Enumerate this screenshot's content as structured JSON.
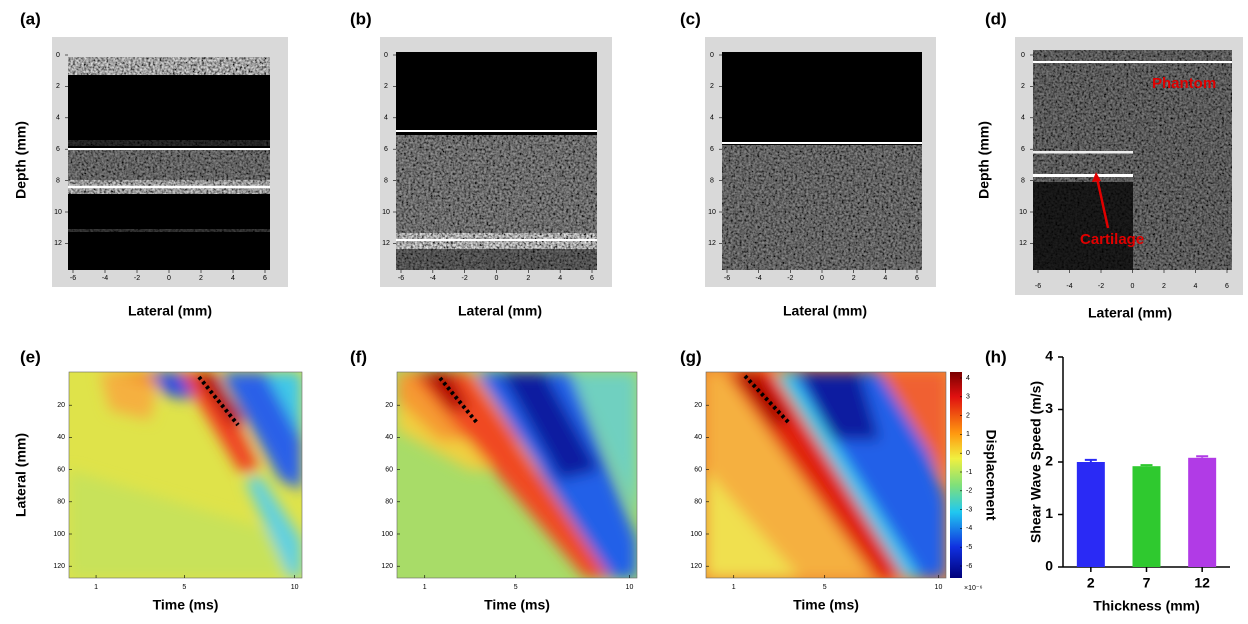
{
  "panels": {
    "labels": [
      "(a)",
      "(b)",
      "(c)",
      "(d)",
      "(e)",
      "(f)",
      "(g)",
      "(h)"
    ]
  },
  "ultrasound": {
    "y_label": "Depth (mm)",
    "x_label": "Lateral (mm)",
    "yticks": [
      0,
      2,
      4,
      6,
      8,
      10,
      12
    ],
    "xticks": [
      -6,
      -4,
      -2,
      0,
      2,
      4,
      6
    ],
    "annotations": [
      "Phantom",
      "Cartilage"
    ]
  },
  "displacement": {
    "y_label": "Lateral (mm)",
    "x_label": "Time  (ms)",
    "yticks": [
      20,
      40,
      60,
      80,
      100,
      120
    ],
    "xticks": [
      1,
      5,
      10
    ],
    "colorbar_label": "Displacement",
    "colorbar_ticks": [
      4,
      3,
      2,
      1,
      0,
      -1,
      -2,
      -3,
      -4,
      -5,
      -6
    ],
    "colorbar_scale": "×10⁻⁶"
  },
  "chart_data": {
    "type": "bar",
    "y_label": "Shear Wave Speed (m/s)",
    "x_label": "Thickness (mm)",
    "categories": [
      "2",
      "7",
      "12"
    ],
    "values": [
      2.0,
      1.92,
      2.08
    ],
    "errors": [
      0.04,
      0.02,
      0.03
    ],
    "colors": [
      "#2a2af5",
      "#2fc92f",
      "#b13be6"
    ],
    "ylim": [
      0,
      4
    ],
    "yticks": [
      0,
      1,
      2,
      3,
      4
    ]
  }
}
